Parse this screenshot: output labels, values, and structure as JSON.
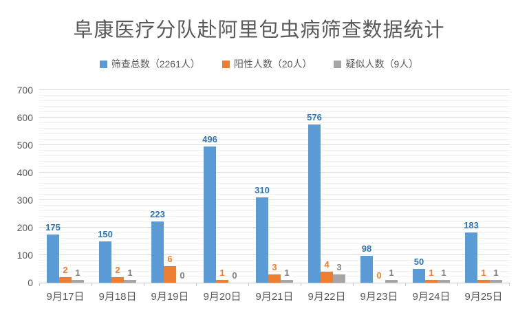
{
  "title": "阜康医疗分队赴阿里包虫病筛查数据统计",
  "legend": [
    {
      "label": "筛查总数（2261人）",
      "color": "#5B9BD5"
    },
    {
      "label": "阳性人数（20人）",
      "color": "#ED7D31"
    },
    {
      "label": "疑似人数（9人）",
      "color": "#A6A6A6"
    }
  ],
  "chart_data": {
    "type": "bar",
    "title": "阜康医疗分队赴阿里包虫病筛查数据统计",
    "categories": [
      "9月17日",
      "9月18日",
      "9月19日",
      "9月20日",
      "9月21日",
      "9月22日",
      "9月23日",
      "9月24日",
      "9月25日"
    ],
    "series": [
      {
        "name": "筛查总数（2261人）",
        "values": [
          175,
          150,
          223,
          496,
          310,
          576,
          98,
          50,
          183
        ],
        "color": "#5B9BD5",
        "label_color": "#2E74B5",
        "axis": "primary"
      },
      {
        "name": "阳性人数（20人）",
        "values": [
          2,
          2,
          6,
          1,
          3,
          4,
          0,
          1,
          1
        ],
        "color": "#ED7D31",
        "label_color": "#ED7D31",
        "axis": "secondary"
      },
      {
        "name": "疑似人数（9人）",
        "values": [
          1,
          1,
          0,
          0,
          1,
          3,
          1,
          1,
          1
        ],
        "color": "#A6A6A6",
        "label_color": "#7F7F7F",
        "axis": "secondary"
      }
    ],
    "y_axis": {
      "ticks": [
        0,
        100,
        200,
        300,
        400,
        500,
        600,
        700
      ],
      "max": 700,
      "minor_step": 20
    },
    "secondary_axis_max": 70,
    "grid": true,
    "data_labels": true,
    "legend_position": "top"
  }
}
